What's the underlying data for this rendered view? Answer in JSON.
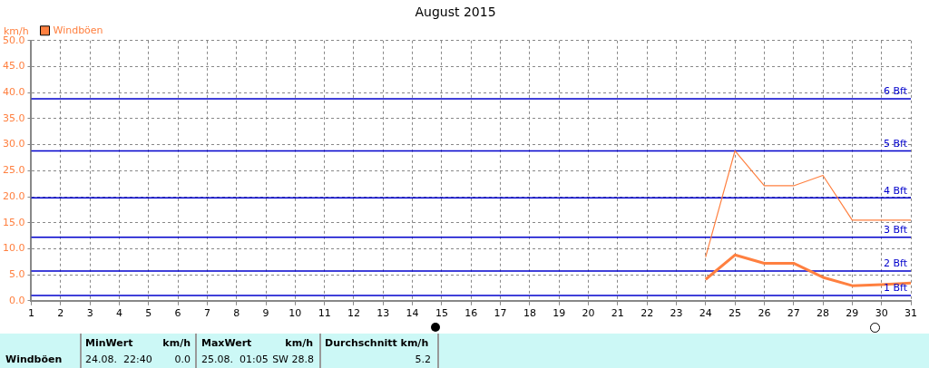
{
  "chart_data": {
    "type": "line",
    "title": "August 2015",
    "ylabel": "km/h",
    "x": [
      24,
      25,
      26,
      27,
      28,
      29,
      30,
      31
    ],
    "series": [
      {
        "name": "Windböen",
        "color": "#ff8040",
        "values": [
          8.4,
          28.8,
          22.1,
          22.1,
          24.1,
          15.5,
          15.5,
          15.5
        ]
      },
      {
        "color": "#ff8040",
        "values": [
          4.1,
          8.8,
          7.2,
          7.2,
          4.5,
          2.9,
          3.1,
          3.4
        ]
      }
    ],
    "xlim": [
      1,
      31
    ],
    "xticks": [
      1,
      2,
      3,
      4,
      5,
      6,
      7,
      8,
      9,
      10,
      11,
      12,
      13,
      14,
      15,
      16,
      17,
      18,
      19,
      20,
      21,
      22,
      23,
      24,
      25,
      26,
      27,
      28,
      29,
      30,
      31
    ],
    "ylim": [
      0,
      50
    ],
    "yticks": [
      {
        "value": 0,
        "label": "0.0"
      },
      {
        "value": 5,
        "label": "5.0"
      },
      {
        "value": 10,
        "label": "10.0"
      },
      {
        "value": 15,
        "label": "15.0"
      },
      {
        "value": 20,
        "label": "20.0"
      },
      {
        "value": 25,
        "label": "25.0"
      },
      {
        "value": 30,
        "label": "30.0"
      },
      {
        "value": 35,
        "label": "35.0"
      },
      {
        "value": 40,
        "label": "40.0"
      },
      {
        "value": 45,
        "label": "45.0"
      },
      {
        "value": 50,
        "label": "50.0"
      }
    ],
    "ref_lines": [
      {
        "axis": "y",
        "value": 1,
        "label": "1 Bft",
        "color": "#0000cc"
      },
      {
        "axis": "y",
        "value": 5.7,
        "label": "2 Bft",
        "color": "#0000cc"
      },
      {
        "axis": "y",
        "value": 12.2,
        "label": "3 Bft",
        "color": "#0000cc"
      },
      {
        "axis": "y",
        "value": 19.8,
        "label": "4 Bft",
        "color": "#0000cc"
      },
      {
        "axis": "y",
        "value": 28.8,
        "label": "5 Bft",
        "color": "#0000cc"
      },
      {
        "axis": "y",
        "value": 38.8,
        "label": "6 Bft",
        "color": "#0000cc"
      }
    ],
    "grid": true,
    "legend": "top left",
    "marker": "none",
    "line_style": "solid",
    "annotations": [
      "Windböen",
      "MinWert",
      "km/h",
      "24.08.  22:40",
      "0.0",
      "MaxWert",
      "km/h",
      "25.08.  01:05",
      "SW 28.8",
      "Durchschnitt km/h",
      "5.2"
    ]
  }
}
